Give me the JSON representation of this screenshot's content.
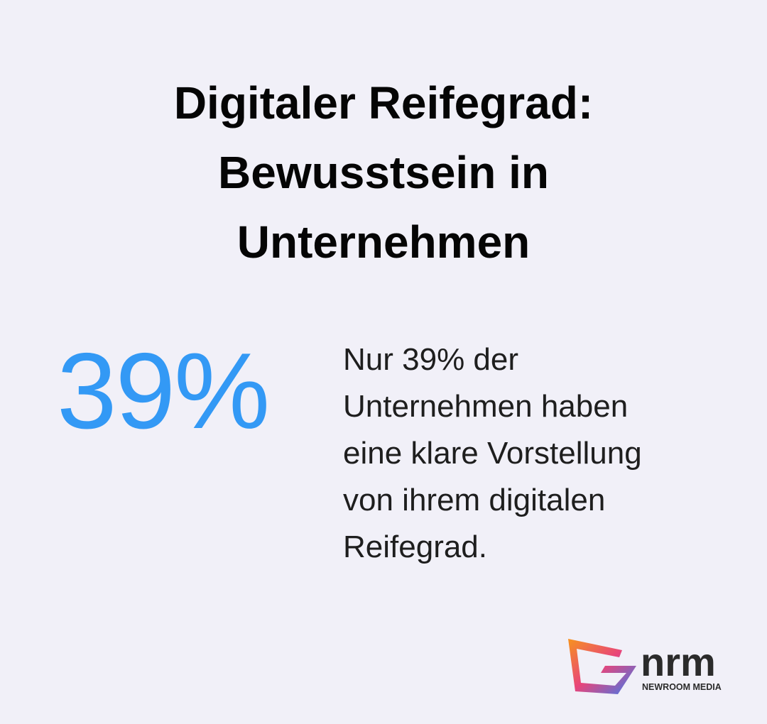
{
  "header": {
    "title_lines": [
      "Digitaler Reifegrad:",
      "Bewusstsein in",
      "Unternehmen"
    ]
  },
  "stat": {
    "value": "39%",
    "description_lines": [
      "Nur 39% der",
      "Unternehmen haben",
      "eine klare Vorstellung",
      "von ihrem digitalen",
      "Reifegrad."
    ]
  },
  "logo": {
    "name": "nrm",
    "tagline": "NEWROOM MEDIA"
  }
}
